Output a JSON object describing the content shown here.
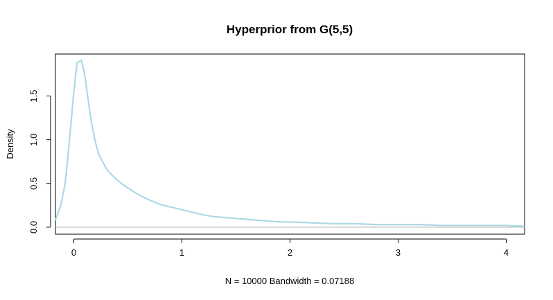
{
  "chart_data": {
    "type": "line",
    "title": "Hyperprior from G(5,5)",
    "xlabel": "N = 10000   Bandwidth = 0.07188",
    "ylabel": "Density",
    "xlim": [
      -0.17,
      4.17
    ],
    "ylim": [
      -0.08,
      1.98
    ],
    "x_ticks": [
      0,
      1,
      2,
      3,
      4
    ],
    "x_tick_labels": [
      "0",
      "1",
      "2",
      "3",
      "4"
    ],
    "y_ticks": [
      0.0,
      0.5,
      1.0,
      1.5
    ],
    "y_tick_labels": [
      "0.0",
      "0.5",
      "1.0",
      "1.5"
    ],
    "grid": false,
    "zero_reference_line": true,
    "series": [
      {
        "color": "#add8e6",
        "x": [
          -0.17,
          -0.12,
          -0.08,
          -0.04,
          0.0,
          0.03,
          0.07,
          0.1,
          0.13,
          0.16,
          0.2,
          0.23,
          0.27,
          0.3,
          0.35,
          0.4,
          0.45,
          0.5,
          0.55,
          0.6,
          0.7,
          0.8,
          0.9,
          1.0,
          1.1,
          1.2,
          1.3,
          1.4,
          1.5,
          1.6,
          1.7,
          1.8,
          1.9,
          2.0,
          2.2,
          2.4,
          2.6,
          2.8,
          3.0,
          3.2,
          3.4,
          3.6,
          3.8,
          4.0,
          4.17
        ],
        "values": [
          0.08,
          0.25,
          0.5,
          1.0,
          1.55,
          1.88,
          1.91,
          1.75,
          1.48,
          1.22,
          0.97,
          0.84,
          0.74,
          0.67,
          0.6,
          0.54,
          0.49,
          0.45,
          0.41,
          0.37,
          0.31,
          0.26,
          0.23,
          0.2,
          0.17,
          0.14,
          0.12,
          0.11,
          0.1,
          0.09,
          0.08,
          0.07,
          0.06,
          0.06,
          0.05,
          0.04,
          0.04,
          0.03,
          0.03,
          0.03,
          0.02,
          0.02,
          0.02,
          0.02,
          0.01
        ]
      }
    ]
  }
}
